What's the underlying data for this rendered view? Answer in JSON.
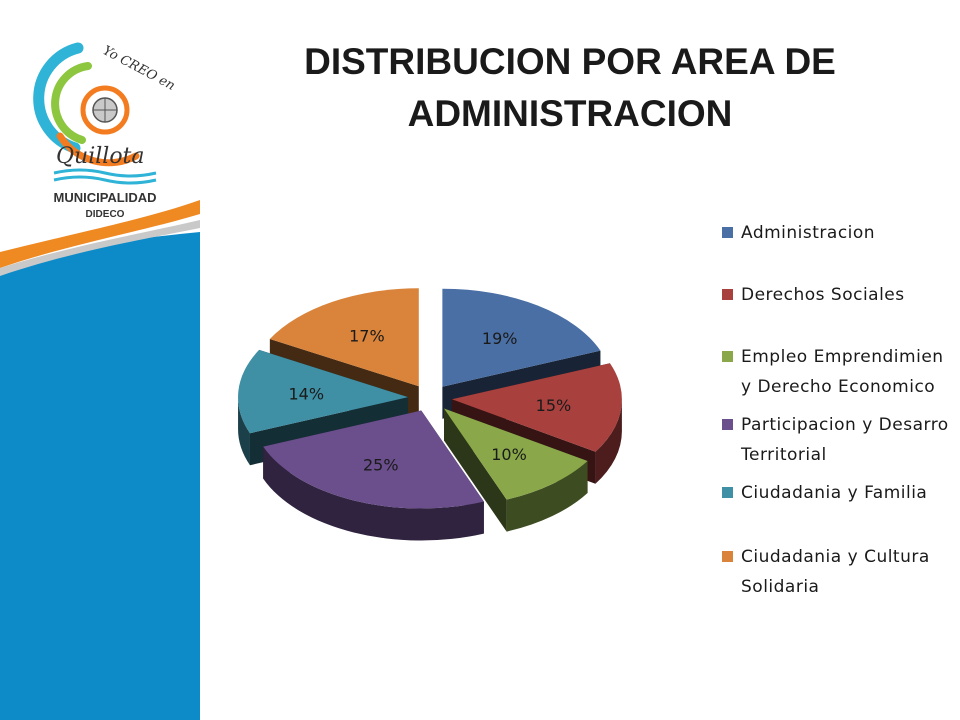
{
  "logo": {
    "tagline": "Yo CREO en",
    "city": "Quillota",
    "org": "MUNICIPALIDAD",
    "dept": "DIDECO"
  },
  "chart_data": {
    "type": "pie",
    "title": "DISTRIBUCION POR  AREA DE ADMINISTRACION",
    "categories": [
      "Administracion",
      "Derechos Sociales",
      "Empleo Emprendimien\ny Derecho Economico",
      "Participacion y Desarro\nTerritorial",
      "Ciudadania y Familia",
      "Ciudadania y Cultura\nSolidaria"
    ],
    "values": [
      19,
      15,
      10,
      25,
      14,
      17
    ],
    "data_labels": [
      "19%",
      "15%",
      "10%",
      "25%",
      "14%",
      "17%"
    ],
    "colors": [
      "#4a6fa5",
      "#a8403e",
      "#8aa84a",
      "#6b4e8c",
      "#3f8fa5",
      "#d9843a"
    ],
    "exploded": true,
    "style": "3d",
    "legend_position": "right"
  }
}
